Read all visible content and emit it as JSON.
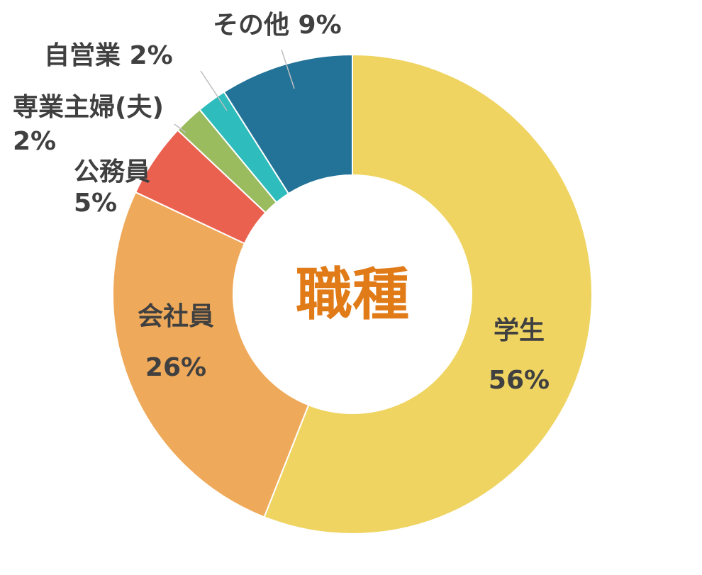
{
  "chart_data": {
    "type": "pie",
    "variant": "donut",
    "title": "職種",
    "title_color": "#E07B18",
    "start_angle_deg": 0,
    "direction": "clockwise",
    "slices": [
      {
        "name": "学生",
        "value": 56,
        "value_label": "56%",
        "color": "#EFD462"
      },
      {
        "name": "会社員",
        "value": 26,
        "value_label": "26%",
        "color": "#EFA95A"
      },
      {
        "name": "公務員",
        "value": 5,
        "value_label": "5%",
        "color": "#EB6150"
      },
      {
        "name": "専業主婦(夫)",
        "value": 2,
        "value_label": "2%",
        "color": "#9BBB5F"
      },
      {
        "name": "自営業",
        "value": 2,
        "value_label": "2%",
        "color": "#2EBCBC"
      },
      {
        "name": "その他",
        "value": 9,
        "value_label": "9%",
        "color": "#237399"
      }
    ]
  }
}
